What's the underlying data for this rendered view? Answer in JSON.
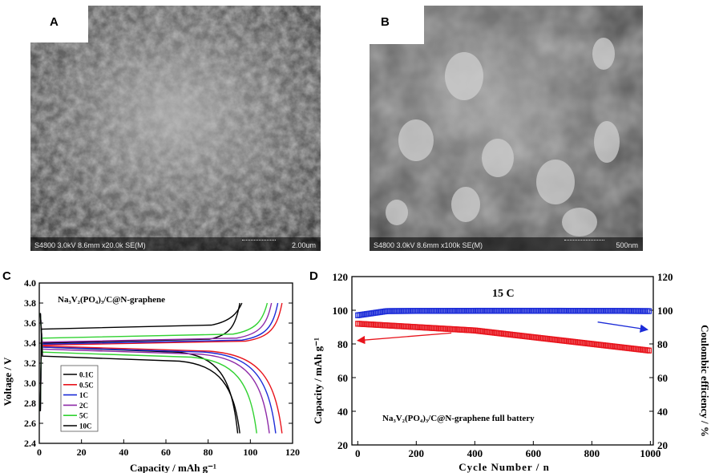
{
  "panels": {
    "a": {
      "letter": "A",
      "sem_info": "S4800 3.0kV 8.6mm x20.0k SE(M)",
      "scale": "2.00um"
    },
    "b": {
      "letter": "B",
      "sem_info": "S4800 3.0kV 8.6mm x100k SE(M)",
      "scale": "500nm"
    },
    "c": {
      "letter": "C",
      "formula": "Na₃V₂(PO₄)₃/C@N-graphene",
      "ylabel": "Voltage / V",
      "xlabel": "Capacity / mAh g⁻¹"
    },
    "d": {
      "letter": "D",
      "rate_label": "15 C",
      "annotation": "Na₃V₂(PO₄)₃/C@N-graphene full battery",
      "ylabel_left": "Capacity / mAh g⁻¹",
      "ylabel_right": "Coulombic efficiency / %",
      "xlabel": "Cycle Number / n"
    }
  },
  "chart_data": [
    {
      "type": "line",
      "panel": "C",
      "xlabel": "Capacity / mAh g-1",
      "ylabel": "Voltage / V",
      "xlim": [
        0,
        120
      ],
      "ylim": [
        2.4,
        4.0
      ],
      "xticks": [
        0,
        20,
        40,
        60,
        80,
        100,
        120
      ],
      "yticks": [
        2.4,
        2.6,
        2.8,
        3.0,
        3.2,
        3.4,
        3.6,
        3.8,
        4.0
      ],
      "legend_position": "bottom-left",
      "series": [
        {
          "name": "0.1C",
          "color": "#000000",
          "charge_capacity": 95,
          "discharge_capacity": 94,
          "charge_plateau": 3.42,
          "discharge_plateau": 3.32
        },
        {
          "name": "0.5C",
          "color": "#e8141c",
          "charge_capacity": 115,
          "discharge_capacity": 115,
          "charge_plateau": 3.4,
          "discharge_plateau": 3.33
        },
        {
          "name": "1C",
          "color": "#1c2cd8",
          "charge_capacity": 113,
          "discharge_capacity": 112,
          "charge_plateau": 3.41,
          "discharge_plateau": 3.32
        },
        {
          "name": "2C",
          "color": "#8e2aa8",
          "charge_capacity": 110,
          "discharge_capacity": 109,
          "charge_plateau": 3.43,
          "discharge_plateau": 3.3
        },
        {
          "name": "5C",
          "color": "#32d232",
          "charge_capacity": 108,
          "discharge_capacity": 103,
          "charge_plateau": 3.47,
          "discharge_plateau": 3.27
        },
        {
          "name": "10C",
          "color": "#000000",
          "charge_capacity": 96,
          "discharge_capacity": 95,
          "charge_plateau": 3.56,
          "discharge_plateau": 3.23
        }
      ]
    },
    {
      "type": "scatter",
      "panel": "D",
      "title": "15 C",
      "xlabel": "Cycle Number / n",
      "ylabel": "Capacity / mAh g-1",
      "y2label": "Coulombic efficiency / %",
      "xlim": [
        -20,
        1010
      ],
      "ylim": [
        20,
        120
      ],
      "y2lim": [
        20,
        120
      ],
      "xticks": [
        0,
        200,
        400,
        600,
        800,
        1000
      ],
      "yticks": [
        20,
        40,
        60,
        80,
        100,
        120
      ],
      "series": [
        {
          "name": "Capacity",
          "axis": "left",
          "color": "#e8141c",
          "x": [
            0,
            100,
            200,
            300,
            400,
            500,
            600,
            700,
            800,
            900,
            1000
          ],
          "y": [
            92,
            91,
            90,
            89,
            88,
            86,
            84,
            82,
            80,
            78,
            76
          ]
        },
        {
          "name": "Coulombic efficiency",
          "axis": "right",
          "color": "#1c2cd8",
          "x": [
            0,
            100,
            200,
            300,
            400,
            500,
            600,
            700,
            800,
            900,
            1000
          ],
          "y": [
            97,
            99.5,
            99.6,
            99.6,
            99.7,
            99.7,
            99.7,
            99.7,
            99.6,
            99.6,
            99.5
          ]
        }
      ]
    }
  ]
}
